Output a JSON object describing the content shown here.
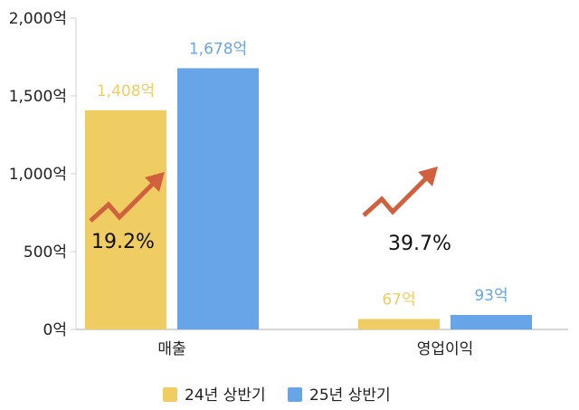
{
  "chart_data": {
    "type": "bar",
    "categories": [
      "매출",
      "영업이익"
    ],
    "series": [
      {
        "name": "24년 상반기",
        "values": [
          1408,
          67
        ],
        "labels": [
          "1,408억",
          "67억"
        ],
        "color": "#EFCD63"
      },
      {
        "name": "25년 상반기",
        "values": [
          1678,
          93
        ],
        "labels": [
          "1,678억",
          "93억"
        ],
        "color": "#68A5E8"
      }
    ],
    "ylim": [
      0,
      2000
    ],
    "yticks": [
      0,
      500,
      1000,
      1500,
      2000
    ],
    "ytick_labels": [
      "0억",
      "500억",
      "1,000억",
      "1,500억",
      "2,000억"
    ],
    "annotations": [
      {
        "category": "매출",
        "text": "19.2%"
      },
      {
        "category": "영업이익",
        "text": "39.7%"
      }
    ],
    "grid": false,
    "legend_position": "bottom",
    "arrow_color": "#D0603E",
    "series_label_colors": [
      "#EFCD63",
      "#68A5E8"
    ]
  }
}
